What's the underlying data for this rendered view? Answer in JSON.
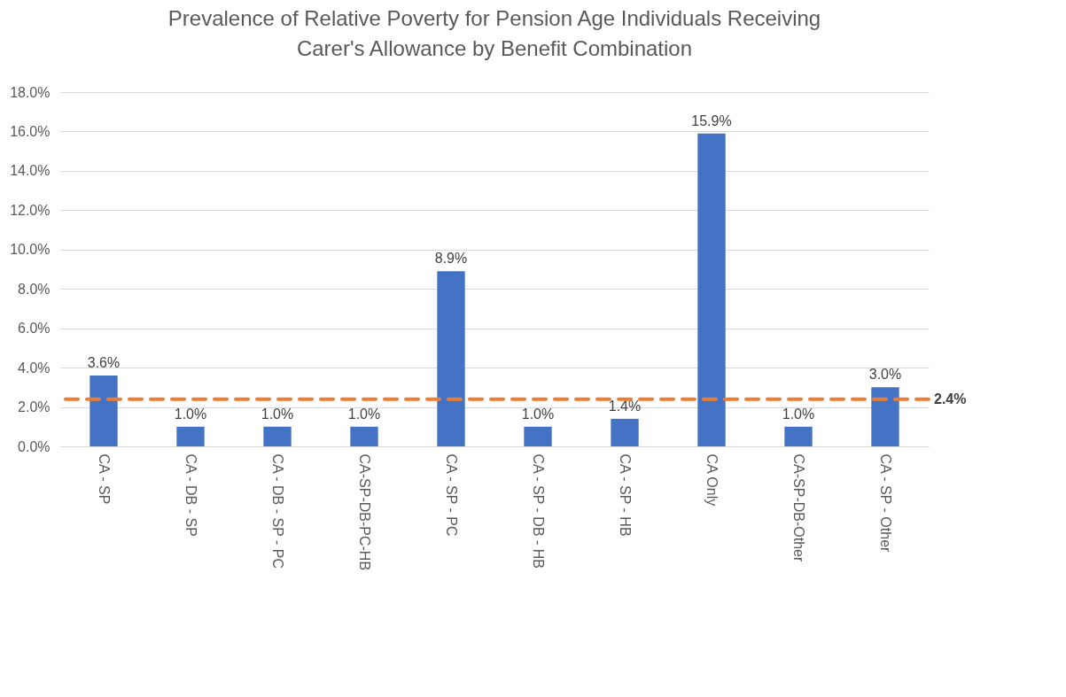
{
  "chart_data": {
    "type": "bar",
    "title": "Prevalence of Relative Poverty for Pension Age Individuals Receiving\nCarer's Allowance by Benefit Combination",
    "categories": [
      "CA - SP",
      "CA - DB - SP",
      "CA - DB - SP - PC",
      "CA-SP-DB-PC-HB",
      "CA - SP - PC",
      "CA - SP - DB - HB",
      "CA - SP - HB",
      "CA Only",
      "CA-SP-DB-Other",
      "CA - SP - Other"
    ],
    "values": [
      3.6,
      1.0,
      1.0,
      1.0,
      8.9,
      1.0,
      1.4,
      15.9,
      1.0,
      3.0
    ],
    "value_labels": [
      "3.6%",
      "1.0%",
      "1.0%",
      "1.0%",
      "8.9%",
      "1.0%",
      "1.4%",
      "15.9%",
      "1.0%",
      "3.0%"
    ],
    "color": "#4472c4",
    "ylim": [
      0,
      18
    ],
    "yticks": [
      {
        "value": 0,
        "label": "0.0%"
      },
      {
        "value": 2,
        "label": "2.0%"
      },
      {
        "value": 4,
        "label": "4.0%"
      },
      {
        "value": 6,
        "label": "6.0%"
      },
      {
        "value": 8,
        "label": "8.0%"
      },
      {
        "value": 10,
        "label": "10.0%"
      },
      {
        "value": 12,
        "label": "12.0%"
      },
      {
        "value": 14,
        "label": "14.0%"
      },
      {
        "value": 16,
        "label": "16.0%"
      },
      {
        "value": 18,
        "label": "18.0%"
      }
    ],
    "grid": "y",
    "ref_lines": [
      {
        "axis": "y",
        "value": 2.4,
        "label": "2.4%",
        "color": "#ed7d31",
        "line_style": "dashed"
      }
    ]
  }
}
